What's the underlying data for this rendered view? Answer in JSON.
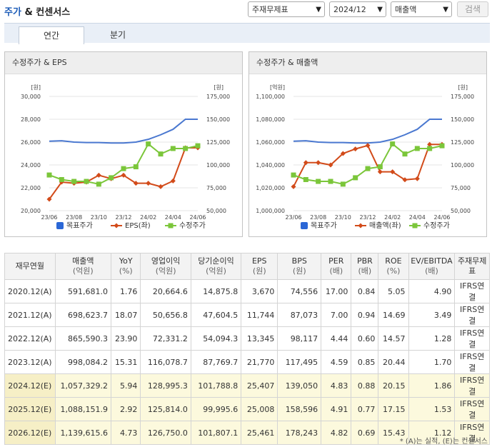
{
  "header": {
    "title_main": "주가",
    "title_amp": " & 컨센서스",
    "filter_statement": "주재무제표",
    "filter_period": "2024/12",
    "filter_metric": "매출액",
    "search_label": "검색"
  },
  "tabs": [
    "연간",
    "분기"
  ],
  "colors": {
    "target": "#4a78d0",
    "eps": "#d24b1a",
    "price": "#7bc63a"
  },
  "charts": [
    {
      "title": "수정주가 & EPS",
      "left_unit": "[원]",
      "right_unit": "[원]",
      "left_ticks": [
        "30,000",
        "28,000",
        "26,000",
        "24,000",
        "22,000",
        "20,000"
      ],
      "right_ticks": [
        "175,000",
        "150,000",
        "125,000",
        "100,000",
        "75,000",
        "50,000"
      ],
      "x_ticks": [
        "23/06",
        "23/08",
        "23/10",
        "23/12",
        "24/02",
        "24/04",
        "24/06"
      ],
      "legend": [
        "목표주가",
        "EPS(좌)",
        "수정주가"
      ]
    },
    {
      "title": "수정주가 & 매출액",
      "left_unit": "[억원]",
      "right_unit": "[원]",
      "left_ticks": [
        "1,100,000",
        "1,080,000",
        "1,060,000",
        "1,040,000",
        "1,020,000",
        "1,000,000"
      ],
      "right_ticks": [
        "175,000",
        "150,000",
        "125,000",
        "100,000",
        "75,000",
        "50,000"
      ],
      "x_ticks": [
        "23/06",
        "23/08",
        "23/10",
        "23/12",
        "24/02",
        "24/04",
        "24/06"
      ],
      "legend": [
        "목표주가",
        "매출액(좌)",
        "수정주가"
      ]
    }
  ],
  "chart_data": [
    {
      "type": "line",
      "title": "수정주가 & EPS",
      "x": [
        "23/06",
        "23/07",
        "23/08",
        "23/09",
        "23/10",
        "23/11",
        "23/12",
        "24/01",
        "24/02",
        "24/03",
        "24/04",
        "24/05",
        "24/06"
      ],
      "series": [
        {
          "name": "목표주가",
          "axis": "right",
          "values": [
            126000,
            126500,
            125000,
            124500,
            124500,
            124000,
            124000,
            125000,
            128000,
            133000,
            139000,
            150000,
            150000
          ]
        },
        {
          "name": "EPS(좌)",
          "axis": "left",
          "values": [
            21000,
            22500,
            22400,
            22500,
            23100,
            22800,
            23100,
            22400,
            22400,
            22100,
            22600,
            25500,
            25500
          ]
        },
        {
          "name": "수정주가",
          "axis": "right",
          "values": [
            89000,
            84000,
            82000,
            82000,
            79000,
            86000,
            96000,
            98000,
            123000,
            112000,
            118000,
            118000,
            121000
          ]
        }
      ],
      "ylim_left": [
        20000,
        30000
      ],
      "ylim_right": [
        50000,
        175000
      ]
    },
    {
      "type": "line",
      "title": "수정주가 & 매출액",
      "x": [
        "23/06",
        "23/07",
        "23/08",
        "23/09",
        "23/10",
        "23/11",
        "23/12",
        "24/01",
        "24/02",
        "24/03",
        "24/04",
        "24/05",
        "24/06"
      ],
      "series": [
        {
          "name": "목표주가",
          "axis": "right",
          "values": [
            126000,
            126500,
            125000,
            124500,
            124500,
            124000,
            124000,
            125000,
            128000,
            133000,
            139000,
            150000,
            150000
          ]
        },
        {
          "name": "매출액(좌)",
          "axis": "left",
          "values": [
            1021000,
            1042000,
            1042000,
            1040000,
            1050000,
            1054000,
            1057000,
            1034000,
            1034000,
            1027000,
            1028000,
            1058000,
            1058000
          ]
        },
        {
          "name": "수정주가",
          "axis": "right",
          "values": [
            89000,
            84000,
            82000,
            82000,
            79000,
            86000,
            96000,
            98000,
            123000,
            112000,
            118000,
            118000,
            121000
          ]
        }
      ],
      "ylim_left": [
        1000000,
        1100000
      ],
      "ylim_right": [
        50000,
        175000
      ]
    }
  ],
  "table": {
    "headers": [
      {
        "main": "재무연월",
        "sub": ""
      },
      {
        "main": "매출액",
        "sub": "(억원)"
      },
      {
        "main": "YoY",
        "sub": "(%)"
      },
      {
        "main": "영업이익",
        "sub": "(억원)"
      },
      {
        "main": "당기순이익",
        "sub": "(억원)"
      },
      {
        "main": "EPS",
        "sub": "(원)"
      },
      {
        "main": "BPS",
        "sub": "(원)"
      },
      {
        "main": "PER",
        "sub": "(배)"
      },
      {
        "main": "PBR",
        "sub": "(배)"
      },
      {
        "main": "ROE",
        "sub": "(%)"
      },
      {
        "main": "EV/EBITDA",
        "sub": "(배)"
      },
      {
        "main": "주재무제표",
        "sub": ""
      }
    ],
    "rows": [
      {
        "period": "2020.12(A)",
        "revenue": "591,681.0",
        "yoy": "1.76",
        "op": "20,664.6",
        "net": "14,875.8",
        "eps": "3,670",
        "bps": "74,556",
        "per": "17.00",
        "pbr": "0.84",
        "roe": "5.05",
        "ev": "4.90",
        "stmt": "IFRS연결"
      },
      {
        "period": "2021.12(A)",
        "revenue": "698,623.7",
        "yoy": "18.07",
        "op": "50,656.8",
        "net": "47,604.5",
        "eps": "11,744",
        "bps": "87,073",
        "per": "7.00",
        "pbr": "0.94",
        "roe": "14.69",
        "ev": "3.49",
        "stmt": "IFRS연결"
      },
      {
        "period": "2022.12(A)",
        "revenue": "865,590.3",
        "yoy": "23.90",
        "op": "72,331.2",
        "net": "54,094.3",
        "eps": "13,345",
        "bps": "98,117",
        "per": "4.44",
        "pbr": "0.60",
        "roe": "14.57",
        "ev": "1.28",
        "stmt": "IFRS연결"
      },
      {
        "period": "2023.12(A)",
        "revenue": "998,084.2",
        "yoy": "15.31",
        "op": "116,078.7",
        "net": "87,769.7",
        "eps": "21,770",
        "bps": "117,495",
        "per": "4.59",
        "pbr": "0.85",
        "roe": "20.44",
        "ev": "1.70",
        "stmt": "IFRS연결"
      },
      {
        "period": "2024.12(E)",
        "revenue": "1,057,329.2",
        "yoy": "5.94",
        "op": "128,995.3",
        "net": "101,788.8",
        "eps": "25,407",
        "bps": "139,050",
        "per": "4.83",
        "pbr": "0.88",
        "roe": "20.15",
        "ev": "1.86",
        "stmt": "IFRS연결"
      },
      {
        "period": "2025.12(E)",
        "revenue": "1,088,151.9",
        "yoy": "2.92",
        "op": "125,814.0",
        "net": "99,995.6",
        "eps": "25,008",
        "bps": "158,596",
        "per": "4.91",
        "pbr": "0.77",
        "roe": "17.15",
        "ev": "1.53",
        "stmt": "IFRS연결"
      },
      {
        "period": "2026.12(E)",
        "revenue": "1,139,615.6",
        "yoy": "4.73",
        "op": "126,750.0",
        "net": "101,807.1",
        "eps": "25,461",
        "bps": "178,243",
        "per": "4.82",
        "pbr": "0.69",
        "roe": "15.43",
        "ev": "1.12",
        "stmt": "IFRS연결"
      }
    ]
  },
  "footnote": "* (A)는 실적, (E)는 컨센서스"
}
